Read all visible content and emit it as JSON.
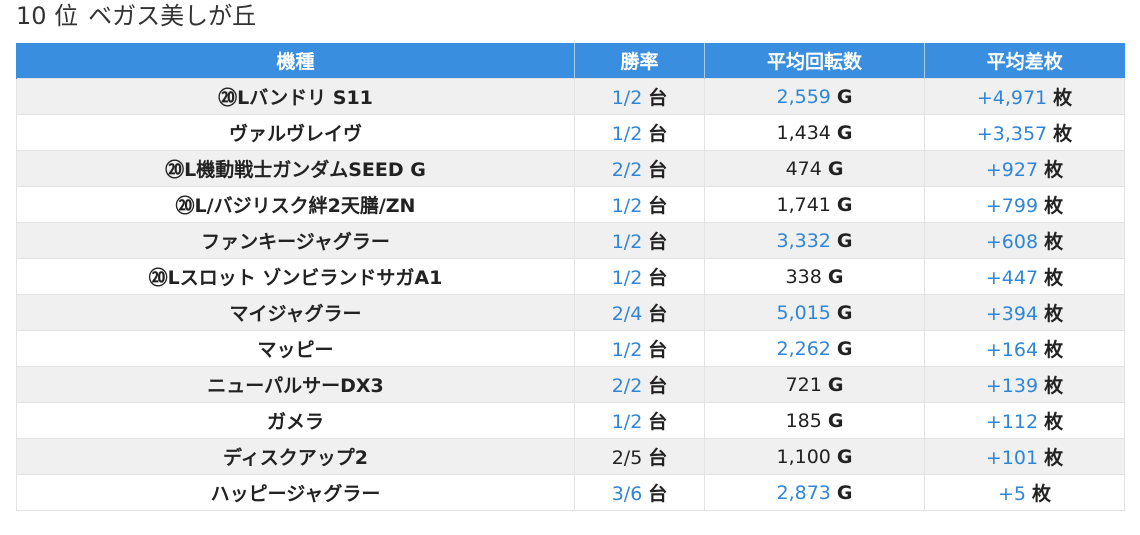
{
  "header": {
    "rank": "10 位",
    "store": "ベガス美しが丘"
  },
  "table": {
    "columns": [
      "機種",
      "勝率",
      "平均回転数",
      "平均差枚"
    ],
    "units": {
      "win": "台",
      "spin": "G",
      "diff": "枚"
    },
    "rows": [
      {
        "name": "⑳Lバンドリ S11",
        "win": "1/2",
        "win_hl": true,
        "spin": "2,559",
        "spin_hl": true,
        "diff": "+4,971",
        "diff_hl": true
      },
      {
        "name": "ヴァルヴレイヴ",
        "win": "1/2",
        "win_hl": true,
        "spin": "1,434",
        "spin_hl": false,
        "diff": "+3,357",
        "diff_hl": true
      },
      {
        "name": "⑳L機動戦士ガンダムSEED G",
        "win": "2/2",
        "win_hl": true,
        "spin": "474",
        "spin_hl": false,
        "diff": "+927",
        "diff_hl": true
      },
      {
        "name": "⑳L/バジリスク絆2天膳/ZN",
        "win": "1/2",
        "win_hl": true,
        "spin": "1,741",
        "spin_hl": false,
        "diff": "+799",
        "diff_hl": true
      },
      {
        "name": "ファンキージャグラー",
        "win": "1/2",
        "win_hl": true,
        "spin": "3,332",
        "spin_hl": true,
        "diff": "+608",
        "diff_hl": true
      },
      {
        "name": "⑳Lスロット ゾンビランドサガA1",
        "win": "1/2",
        "win_hl": true,
        "spin": "338",
        "spin_hl": false,
        "diff": "+447",
        "diff_hl": true
      },
      {
        "name": "マイジャグラー",
        "win": "2/4",
        "win_hl": true,
        "spin": "5,015",
        "spin_hl": true,
        "diff": "+394",
        "diff_hl": true
      },
      {
        "name": "マッピー",
        "win": "1/2",
        "win_hl": true,
        "spin": "2,262",
        "spin_hl": true,
        "diff": "+164",
        "diff_hl": true
      },
      {
        "name": "ニューパルサーDX3",
        "win": "2/2",
        "win_hl": true,
        "spin": "721",
        "spin_hl": false,
        "diff": "+139",
        "diff_hl": true
      },
      {
        "name": "ガメラ",
        "win": "1/2",
        "win_hl": true,
        "spin": "185",
        "spin_hl": false,
        "diff": "+112",
        "diff_hl": true
      },
      {
        "name": "ディスクアップ2",
        "win": "2/5",
        "win_hl": false,
        "spin": "1,100",
        "spin_hl": false,
        "diff": "+101",
        "diff_hl": true
      },
      {
        "name": "ハッピージャグラー",
        "win": "3/6",
        "win_hl": true,
        "spin": "2,873",
        "spin_hl": true,
        "diff": "+5",
        "diff_hl": true
      }
    ]
  },
  "colors": {
    "header_bg": "#3a8ee0",
    "highlight": "#2f86d8",
    "row_alt": "#f0f0f0"
  }
}
